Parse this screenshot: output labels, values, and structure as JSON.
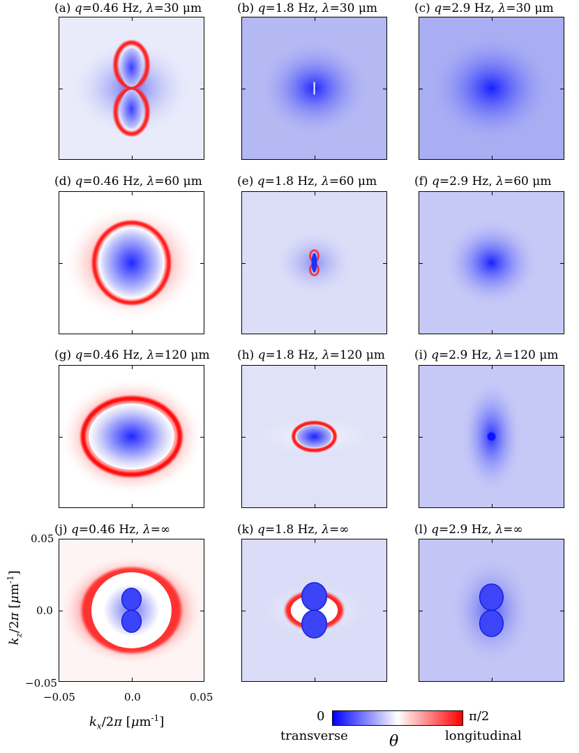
{
  "panels": [
    {
      "label": "(a)",
      "q": "0.46",
      "lambda": "30"
    },
    {
      "label": "(b)",
      "q": "1.8",
      "lambda": "30"
    },
    {
      "label": "(c)",
      "q": "2.9",
      "lambda": "30"
    },
    {
      "label": "(d)",
      "q": "0.46",
      "lambda": "60"
    },
    {
      "label": "(e)",
      "q": "1.8",
      "lambda": "60"
    },
    {
      "label": "(f)",
      "q": "2.9",
      "lambda": "60"
    },
    {
      "label": "(g)",
      "q": "0.46",
      "lambda": "120"
    },
    {
      "label": "(h)",
      "q": "1.8",
      "lambda": "120"
    },
    {
      "label": "(i)",
      "q": "2.9",
      "lambda": "120"
    },
    {
      "label": "(j)",
      "q": "0.46",
      "lambda": "∞"
    },
    {
      "label": "(k)",
      "q": "1.8",
      "lambda": "∞"
    },
    {
      "label": "(l)",
      "q": "2.9",
      "lambda": "∞"
    }
  ],
  "units": {
    "freq": "Hz",
    "length": "μm"
  },
  "axes": {
    "x_ticks": [
      "−0.05",
      "0.0",
      "0.05"
    ],
    "y_ticks": [
      "0.05",
      "0.0",
      "−0.05"
    ],
    "x_label": "kx/2π [μm-1]",
    "y_label": "kz/2π [μm-1]"
  },
  "colorbar": {
    "min_label": "0",
    "max_label": "π/2",
    "left_text": "transverse",
    "right_text": "longitudinal",
    "symbol": "θ",
    "colors": {
      "low": "#0000ff",
      "mid": "#ffffff",
      "high": "#ff0000"
    }
  }
}
